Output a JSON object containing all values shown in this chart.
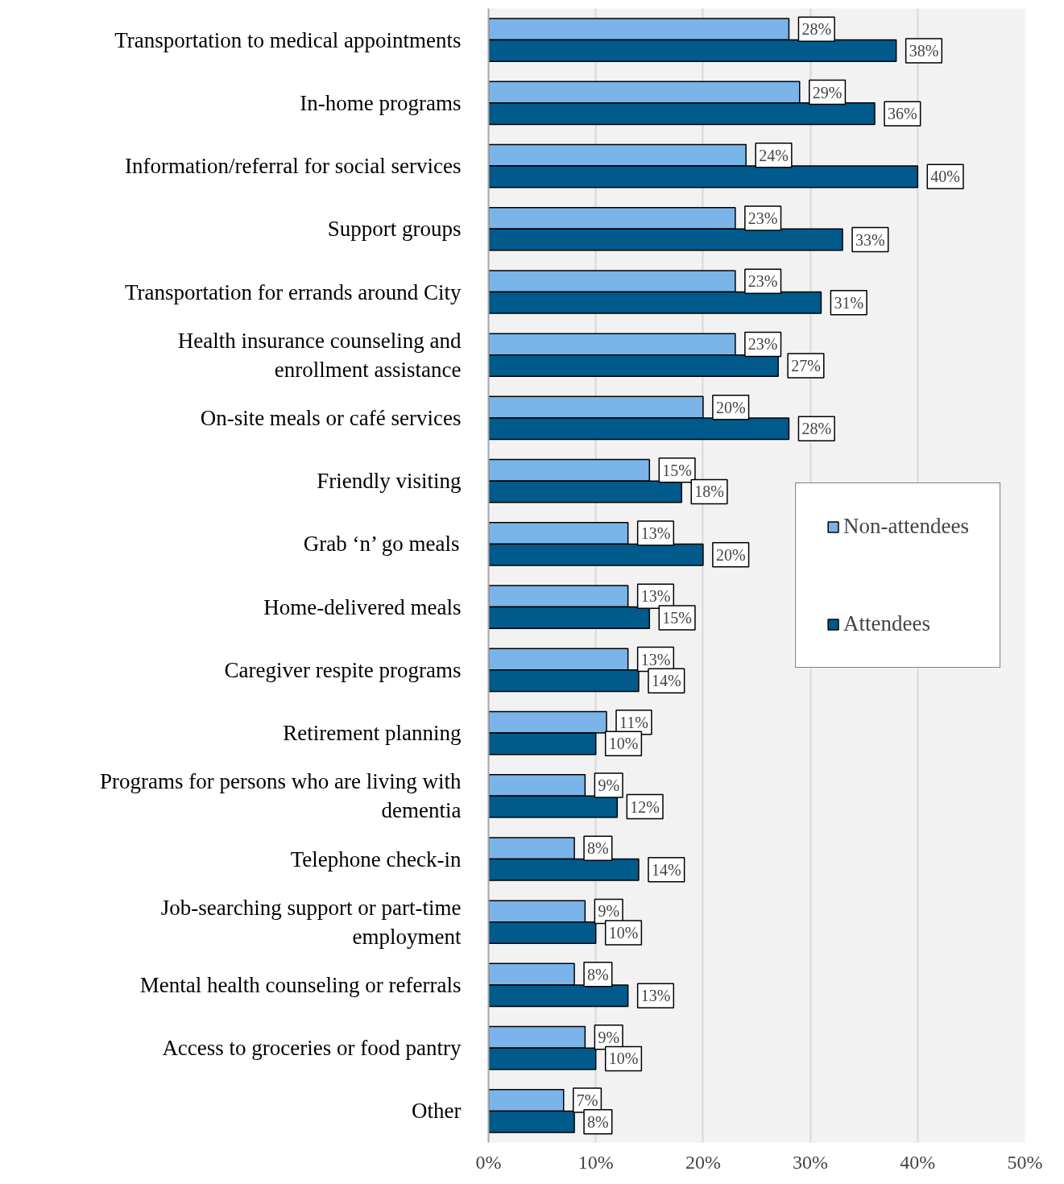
{
  "chart_data": {
    "type": "bar",
    "orientation": "horizontal",
    "categories": [
      "Transportation to medical appointments",
      "In-home programs",
      "Information/referral for social services",
      "Support groups",
      "Transportation for errands around City",
      "Health insurance counseling and\nenrollment assistance",
      "On-site meals or café services",
      "Friendly visiting",
      "Grab ‘n’ go meals",
      "Home-delivered meals",
      "Caregiver respite programs",
      "Retirement planning",
      "Programs for persons who are living with\ndementia",
      "Telephone check-in",
      "Job-searching support or part-time\nemployment",
      "Mental health counseling or referrals",
      "Access to groceries or food pantry",
      "Other"
    ],
    "series": [
      {
        "name": "Non-attendees",
        "color": "#7ab4e8",
        "values": [
          28,
          29,
          24,
          23,
          23,
          23,
          20,
          15,
          13,
          13,
          13,
          11,
          9,
          8,
          9,
          8,
          9,
          7
        ],
        "value_labels": [
          "28%",
          "29%",
          "24%",
          "23%",
          "23%",
          "23%",
          "20%",
          "15%",
          "13%",
          "13%",
          "13%",
          "11%",
          "9%",
          "8%",
          "9%",
          "8%",
          "9%",
          "7%"
        ]
      },
      {
        "name": "Attendees",
        "color": "#005a8c",
        "values": [
          38,
          36,
          40,
          33,
          31,
          27,
          28,
          18,
          20,
          15,
          14,
          10,
          12,
          14,
          10,
          13,
          10,
          8
        ],
        "value_labels": [
          "38%",
          "36%",
          "40%",
          "33%",
          "31%",
          "27%",
          "28%",
          "18%",
          "20%",
          "15%",
          "14%",
          "10%",
          "12%",
          "14%",
          "10%",
          "13%",
          "10%",
          "8%"
        ]
      }
    ],
    "xlim": [
      0,
      50
    ],
    "xticks": [
      {
        "value": 0,
        "label": "0%"
      },
      {
        "value": 10,
        "label": "10%"
      },
      {
        "value": 20,
        "label": "20%"
      },
      {
        "value": 30,
        "label": "30%"
      },
      {
        "value": 40,
        "label": "40%"
      },
      {
        "value": 50,
        "label": "50%"
      }
    ],
    "grid": "x",
    "legend": "right"
  }
}
